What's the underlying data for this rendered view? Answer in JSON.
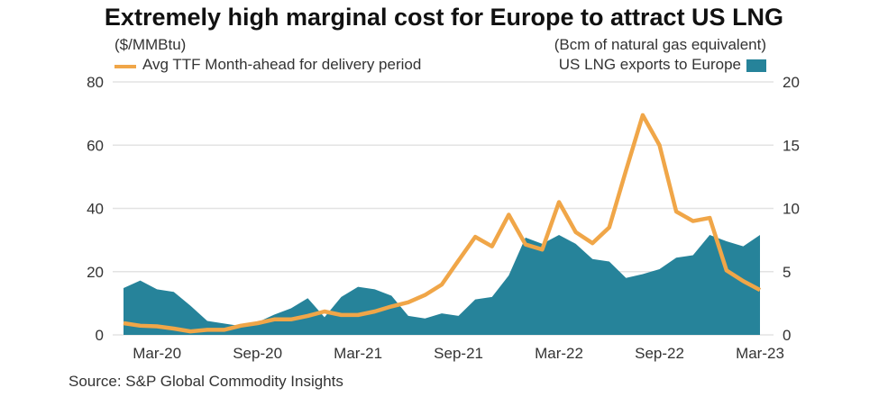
{
  "chart_data": {
    "type": "line+area",
    "title": "Extremely high marginal cost for Europe to attract US LNG",
    "ylabel_left": "($/MMBtu)",
    "ylabel_right": "(Bcm of natural gas equivalent)",
    "ylim_left": [
      0,
      80
    ],
    "yticks_left": [
      "0",
      "20",
      "40",
      "60",
      "80"
    ],
    "ylim_right": [
      0,
      20
    ],
    "yticks_right": [
      "0",
      "5",
      "10",
      "15",
      "20"
    ],
    "xticks": [
      "Mar-20",
      "Sep-20",
      "Mar-21",
      "Sep-21",
      "Mar-22",
      "Sep-22",
      "Mar-23"
    ],
    "x": [
      "Jan-20",
      "Feb-20",
      "Mar-20",
      "Apr-20",
      "May-20",
      "Jun-20",
      "Jul-20",
      "Aug-20",
      "Sep-20",
      "Oct-20",
      "Nov-20",
      "Dec-20",
      "Jan-21",
      "Feb-21",
      "Mar-21",
      "Apr-21",
      "May-21",
      "Jun-21",
      "Jul-21",
      "Aug-21",
      "Sep-21",
      "Oct-21",
      "Nov-21",
      "Dec-21",
      "Jan-22",
      "Feb-22",
      "Mar-22",
      "Apr-22",
      "May-22",
      "Jun-22",
      "Jul-22",
      "Aug-22",
      "Sep-22",
      "Oct-22",
      "Nov-22",
      "Dec-22",
      "Jan-23",
      "Feb-23",
      "Mar-23"
    ],
    "legend": "top",
    "series": [
      {
        "name": "Avg TTF Month-ahead for delivery period",
        "axis": "left",
        "type": "line",
        "color": "#f0a648",
        "values": [
          3.7,
          2.9,
          2.7,
          2.0,
          1.1,
          1.6,
          1.6,
          2.9,
          3.7,
          4.9,
          4.9,
          6.0,
          7.4,
          6.3,
          6.3,
          7.4,
          9.0,
          10.3,
          12.6,
          15.9,
          23.5,
          31,
          28,
          38,
          28.6,
          27,
          42,
          32.5,
          29,
          34,
          52,
          69.5,
          60,
          39,
          36,
          37,
          20.4,
          17,
          14.2
        ]
      },
      {
        "name": "US LNG exports to Europe",
        "axis": "right",
        "type": "area",
        "color": "#26839a",
        "values": [
          3.7,
          4.3,
          3.6,
          3.4,
          2.3,
          1.1,
          0.9,
          0.7,
          1.0,
          1.6,
          2.1,
          2.9,
          1.4,
          3.0,
          3.8,
          3.6,
          3.1,
          1.5,
          1.3,
          1.7,
          1.5,
          2.8,
          3.0,
          4.7,
          7.7,
          7.2,
          7.9,
          7.2,
          6.0,
          5.8,
          4.5,
          4.8,
          5.2,
          6.1,
          6.3,
          7.9,
          7.4,
          7.0,
          7.9
        ]
      }
    ],
    "source": "Source: S&P Global Commodity Insights"
  }
}
